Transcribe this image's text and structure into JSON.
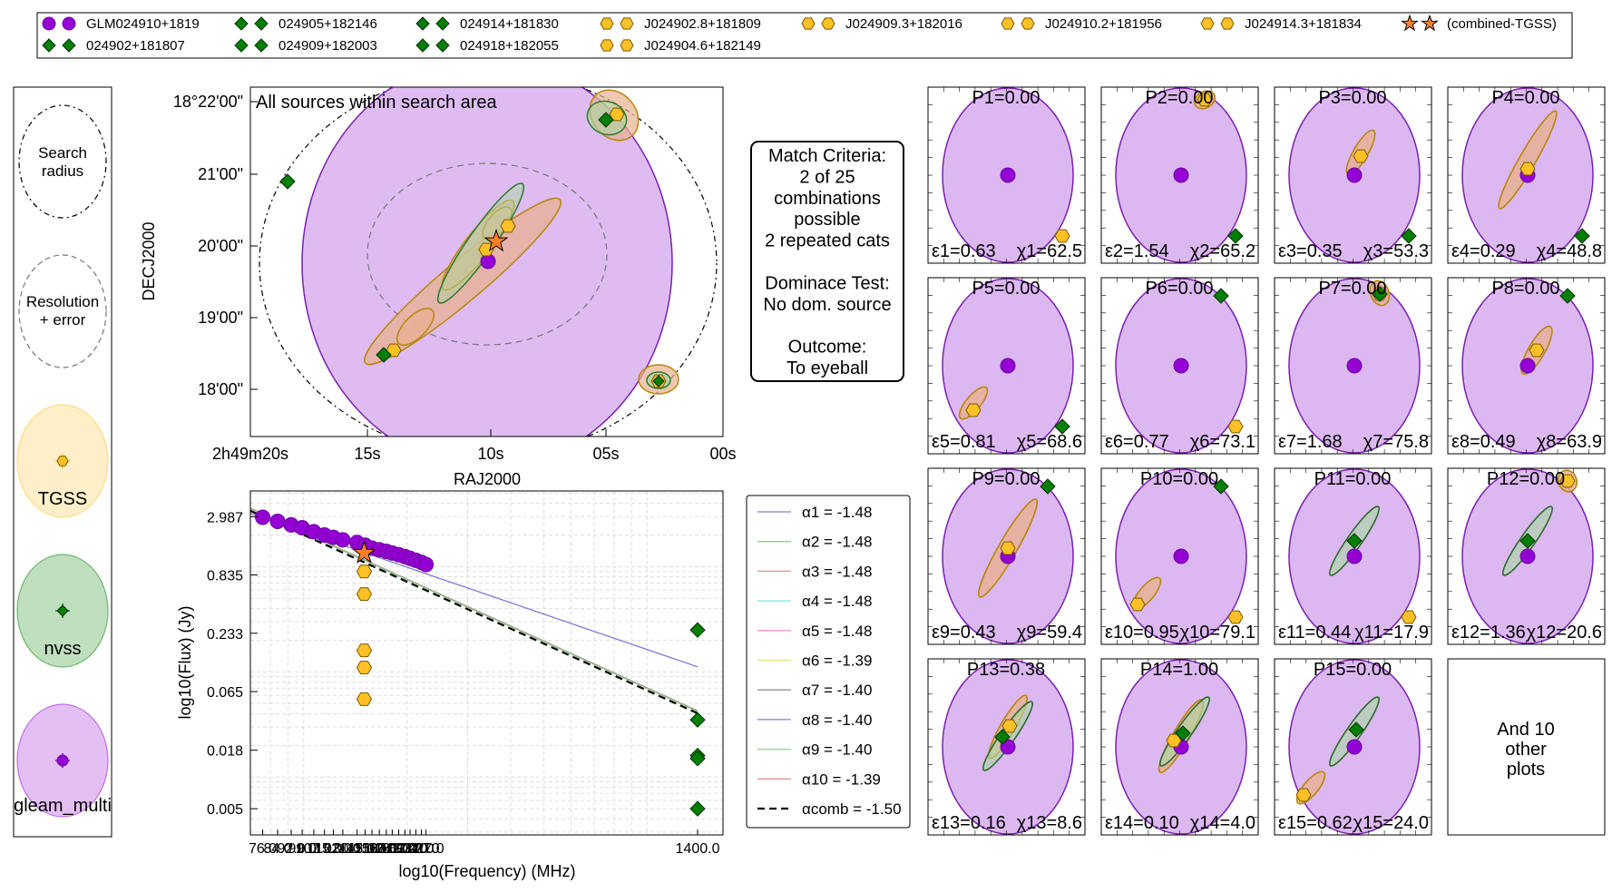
{
  "legend_top": {
    "rows": [
      [
        {
          "marker": "gleam",
          "label": "GLM024910+1819"
        },
        {
          "marker": "nvss",
          "label": "024905+182146"
        },
        {
          "marker": "nvss",
          "label": "024914+181830"
        },
        {
          "marker": "tgss",
          "label": "J024902.8+181809"
        },
        {
          "marker": "tgss",
          "label": "J024909.3+182016"
        },
        {
          "marker": "tgss",
          "label": "J024910.2+181956"
        },
        {
          "marker": "tgss",
          "label": "J024914.3+181834"
        },
        {
          "marker": "star",
          "label": "(combined-TGSS)"
        }
      ],
      [
        {
          "marker": "nvss",
          "label": "024902+181807"
        },
        {
          "marker": "nvss",
          "label": "024909+182003"
        },
        {
          "marker": "nvss",
          "label": "024918+182055"
        },
        {
          "marker": "tgss",
          "label": "J024904.6+182149"
        }
      ]
    ]
  },
  "key_panel": {
    "search_label_1": "Search",
    "search_label_2": "radius",
    "res_label_1": "Resolution",
    "res_label_2": "+ error",
    "catalogues": [
      {
        "name": "TGSS",
        "color": "#ffc125"
      },
      {
        "name": "nvss",
        "color": "#008000"
      },
      {
        "name": "gleam_multi",
        "color": "#9400d3"
      }
    ]
  },
  "sky_plot": {
    "title": "All sources within search area",
    "xlabel": "RAJ2000",
    "ylabel": "DECJ2000",
    "xticks": [
      "2h49m20s",
      "15s",
      "10s",
      "05s",
      "00s"
    ],
    "yticks": [
      "18°22'00\"",
      "21'00\"",
      "20'00\"",
      "19'00\"",
      "18'00\""
    ]
  },
  "match_box": {
    "lines": [
      "Match Criteria:",
      "2 of 25",
      "combinations",
      "possible",
      "2 repeated cats",
      "",
      "Dominace Test:",
      "No dom. source",
      "",
      "Outcome:",
      "To eyeball"
    ]
  },
  "colors": {
    "gleam": "#9400d3",
    "gleam_fill": "#d8b0f0",
    "tgss": "#ffc125",
    "tgss_edge": "#b8860b",
    "tgss_fill": "#e8b090",
    "nvss": "#008000",
    "nvss_fill": "#a8d8a0",
    "star": "#ff7f2a"
  },
  "chart_data": [
    {
      "type": "scatter",
      "name": "sed",
      "xlabel": "log10(Frequency) (MHz)",
      "ylabel": "log10(Flux) (Jy)",
      "log_scale": true,
      "xticks": [
        "76.0",
        "84.0",
        "92.0",
        "99.0",
        "107.0",
        "115.0",
        "122.0",
        "130.0",
        "143.0",
        "151.0",
        "158.0",
        "166.0",
        "174.0",
        "181.0",
        "189.0",
        "197.0",
        "204.0",
        "212.0",
        "220.0",
        "227.0",
        "1400.0"
      ],
      "yticks": [
        "2.987",
        "0.835",
        "0.233",
        "0.065",
        "0.018",
        "0.005"
      ],
      "series": [
        {
          "name": "gleam_multi",
          "marker": "circle",
          "x": [
            76,
            84,
            92,
            99,
            107,
            115,
            122,
            130,
            143,
            151,
            158,
            166,
            174,
            181,
            189,
            197,
            204,
            212,
            220,
            227
          ],
          "y": [
            2.95,
            2.7,
            2.5,
            2.35,
            2.15,
            2.0,
            1.9,
            1.8,
            1.7,
            1.6,
            1.5,
            1.45,
            1.4,
            1.35,
            1.3,
            1.25,
            1.2,
            1.15,
            1.1,
            1.05
          ]
        },
        {
          "name": "TGSS",
          "marker": "hexagon",
          "x": [
            150,
            150,
            150,
            150,
            150
          ],
          "y": [
            0.9,
            0.55,
            0.16,
            0.11,
            0.055
          ]
        },
        {
          "name": "nvss",
          "marker": "diamond",
          "x": [
            1400,
            1400,
            1400,
            1400,
            1400
          ],
          "y": [
            0.25,
            0.035,
            0.016,
            0.015,
            0.005
          ]
        },
        {
          "name": "combined-TGSS",
          "marker": "star",
          "x": [
            150
          ],
          "y": [
            1.35
          ]
        }
      ],
      "fit_lines": [
        {
          "label": "α1 = -1.48",
          "color": "#7b7bd8"
        },
        {
          "label": "α2 = -1.48",
          "color": "#8fc88f"
        },
        {
          "label": "α3 = -1.48",
          "color": "#e89090"
        },
        {
          "label": "α4 = -1.48",
          "color": "#80e0e0"
        },
        {
          "label": "α5 = -1.48",
          "color": "#e890e0"
        },
        {
          "label": "α6 = -1.39",
          "color": "#e0e080"
        },
        {
          "label": "α7 = -1.40",
          "color": "#909090"
        },
        {
          "label": "α8 = -1.40",
          "color": "#8080e0"
        },
        {
          "label": "α9 = -1.40",
          "color": "#90d090"
        },
        {
          "label": "α10 = -1.39",
          "color": "#e89090"
        },
        {
          "label": "αcomb = -1.50",
          "color": "#000000",
          "dashed": true
        }
      ]
    }
  ],
  "combos": [
    {
      "p": "P1=0.00",
      "e": "ε1=0.63",
      "c": "χ1=62.5"
    },
    {
      "p": "P2=0.00",
      "e": "ε2=1.54",
      "c": "χ2=65.2"
    },
    {
      "p": "P3=0.00",
      "e": "ε3=0.35",
      "c": "χ3=53.3"
    },
    {
      "p": "P4=0.00",
      "e": "ε4=0.29",
      "c": "χ4=48.8"
    },
    {
      "p": "P5=0.00",
      "e": "ε5=0.81",
      "c": "χ5=68.6"
    },
    {
      "p": "P6=0.00",
      "e": "ε6=0.77",
      "c": "χ6=73.1"
    },
    {
      "p": "P7=0.00",
      "e": "ε7=1.68",
      "c": "χ7=75.8"
    },
    {
      "p": "P8=0.00",
      "e": "ε8=0.49",
      "c": "χ8=63.9"
    },
    {
      "p": "P9=0.00",
      "e": "ε9=0.43",
      "c": "χ9=59.4"
    },
    {
      "p": "P10=0.00",
      "e": "ε10=0.95",
      "c": "χ10=79.1"
    },
    {
      "p": "P11=0.00",
      "e": "ε11=0.44",
      "c": "χ11=17.9"
    },
    {
      "p": "P12=0.00",
      "e": "ε12=1.36",
      "c": "χ12=20.6"
    },
    {
      "p": "P13=0.38",
      "e": "ε13=0.16",
      "c": "χ13=8.6"
    },
    {
      "p": "P14=1.00",
      "e": "ε14=0.10",
      "c": "χ14=4.0"
    },
    {
      "p": "P15=0.00",
      "e": "ε15=0.62",
      "c": "χ15=24.0"
    }
  ],
  "more_plots": {
    "line1": "And 10",
    "line2": "other",
    "line3": "plots"
  }
}
